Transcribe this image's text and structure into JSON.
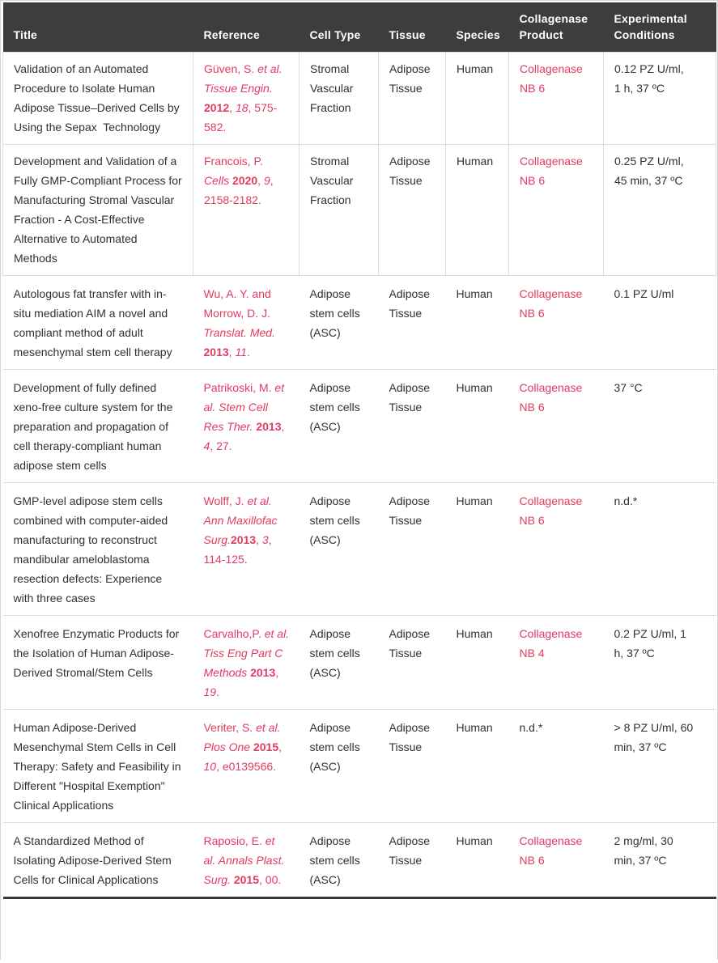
{
  "colors": {
    "accent": "#e23a61",
    "header_bg": "#3d3d3d",
    "header_text": "#ffffff",
    "body_text": "#303030",
    "border_light": "#dcdcdc",
    "border_dark": "#383838"
  },
  "table": {
    "columns": [
      {
        "key": "title",
        "label": "Title"
      },
      {
        "key": "reference",
        "label": "Reference"
      },
      {
        "key": "cell_type",
        "label": "Cell Type"
      },
      {
        "key": "tissue",
        "label": "Tissue"
      },
      {
        "key": "species",
        "label": "Species"
      },
      {
        "key": "product",
        "label": "Collagenase Product"
      },
      {
        "key": "conditions",
        "label": "Experimental Conditions"
      }
    ],
    "rows": [
      {
        "boxed": true,
        "title": "Validation of an Automated Procedure to Isolate Human Adipose Tissue–Derived Cells by Using the Sepax  Technology",
        "reference_parts": [
          {
            "text": "Güven, S. ",
            "style": "r"
          },
          {
            "text": "et al. Tissue Engin. ",
            "style": "i"
          },
          {
            "text": "2012",
            "style": "b"
          },
          {
            "text": ", ",
            "style": "r"
          },
          {
            "text": "18",
            "style": "i"
          },
          {
            "text": ", 575-582.",
            "style": "r"
          }
        ],
        "cell_type": "Stromal Vascular Fraction",
        "tissue": "Adipose Tissue",
        "species": "Human",
        "product": "Collagenase NB 6",
        "product_accent": true,
        "conditions": "0.12 PZ U/ml, 1 h, 37 ºC"
      },
      {
        "boxed": true,
        "title": "Development and Validation of a Fully GMP-Compliant Process for Manufacturing Stromal Vascular Fraction - A Cost-Effective Alternative to Automated Methods",
        "reference_parts": [
          {
            "text": "Francois, P. ",
            "style": "r"
          },
          {
            "text": "Cells ",
            "style": "i"
          },
          {
            "text": "2020",
            "style": "b"
          },
          {
            "text": ", ",
            "style": "r"
          },
          {
            "text": "9",
            "style": "i"
          },
          {
            "text": ", 2158-2182.",
            "style": "r"
          }
        ],
        "cell_type": "Stromal Vascular Fraction",
        "tissue": "Adipose Tissue",
        "species": "Human",
        "product": "Collagenase NB 6",
        "product_accent": true,
        "conditions": "0.25 PZ U/ml, 45 min, 37 ºC"
      },
      {
        "boxed": false,
        "title": "Autologous fat transfer with in-situ mediation AIM a novel and compliant method of adult mesenchymal stem cell therapy",
        "reference_parts": [
          {
            "text": "Wu, A. Y. and Morrow, D. J. ",
            "style": "r"
          },
          {
            "text": "Translat. Med. ",
            "style": "i"
          },
          {
            "text": "2013",
            "style": "b"
          },
          {
            "text": ", ",
            "style": "r"
          },
          {
            "text": "11",
            "style": "i"
          },
          {
            "text": ".",
            "style": "r"
          }
        ],
        "cell_type": "Adipose stem cells (ASC)",
        "tissue": "Adipose Tissue",
        "species": "Human",
        "product": "Collagenase NB 6",
        "product_accent": true,
        "conditions": "0.1 PZ U/ml"
      },
      {
        "boxed": false,
        "title": "Development of fully defined xeno-free culture system for the preparation and propagation of cell therapy-compliant human adipose stem cells",
        "reference_parts": [
          {
            "text": "Patrikoski, M. ",
            "style": "r"
          },
          {
            "text": "et al. Stem Cell Res Ther. ",
            "style": "i"
          },
          {
            "text": "2013",
            "style": "b"
          },
          {
            "text": ", ",
            "style": "r"
          },
          {
            "text": "4",
            "style": "i"
          },
          {
            "text": ", 27.",
            "style": "r"
          }
        ],
        "cell_type": "Adipose stem cells (ASC)",
        "tissue": "Adipose Tissue",
        "species": "Human",
        "product": "Collagenase NB 6",
        "product_accent": true,
        "conditions": "37 °C"
      },
      {
        "boxed": false,
        "title": "GMP-level adipose stem cells combined with computer-aided manufacturing to reconstruct mandibular ameloblastoma resection defects: Experience with three cases",
        "reference_parts": [
          {
            "text": "Wolff, J. ",
            "style": "r"
          },
          {
            "text": "et al. Ann Maxillofac Surg.",
            "style": "i"
          },
          {
            "text": "2013",
            "style": "b"
          },
          {
            "text": ", ",
            "style": "r"
          },
          {
            "text": "3",
            "style": "i"
          },
          {
            "text": ", 114-125.",
            "style": "r"
          }
        ],
        "cell_type": "Adipose stem cells (ASC)",
        "tissue": "Adipose Tissue",
        "species": "Human",
        "product": "Collagenase NB 6",
        "product_accent": true,
        "conditions": "n.d.*"
      },
      {
        "boxed": false,
        "title": "Xenofree Enzymatic Products for the Isolation of Human Adipose-Derived Stromal/Stem Cells",
        "reference_parts": [
          {
            "text": "Carvalho,P. ",
            "style": "r"
          },
          {
            "text": "et al. Tiss Eng Part C Methods ",
            "style": "i"
          },
          {
            "text": "2013",
            "style": "b"
          },
          {
            "text": ", ",
            "style": "r"
          },
          {
            "text": "19",
            "style": "i"
          },
          {
            "text": ".",
            "style": "r"
          }
        ],
        "cell_type": "Adipose stem cells (ASC)",
        "tissue": "Adipose Tissue",
        "species": "Human",
        "product": "Collagenase NB 4",
        "product_accent": true,
        "conditions": "0.2 PZ U/ml, 1 h, 37 ºC"
      },
      {
        "boxed": false,
        "title": "Human Adipose-Derived Mesenchymal Stem Cells in Cell Therapy: Safety and Feasibility in Different \"Hospital Exemption\" Clinical Applications",
        "reference_parts": [
          {
            "text": "Veriter, S. ",
            "style": "r"
          },
          {
            "text": "et al. Plos One ",
            "style": "i"
          },
          {
            "text": "2015",
            "style": "b"
          },
          {
            "text": ", ",
            "style": "r"
          },
          {
            "text": "10",
            "style": "i"
          },
          {
            "text": ", e0139566.",
            "style": "r"
          }
        ],
        "cell_type": "Adipose stem cells (ASC)",
        "tissue": "Adipose Tissue",
        "species": "Human",
        "product": "n.d.*",
        "product_accent": false,
        "conditions": "> 8 PZ U/ml, 60 min, 37 ºC"
      },
      {
        "boxed": false,
        "title": "A Standardized Method of Isolating Adipose-Derived Stem Cells for Clinical Applications",
        "reference_parts": [
          {
            "text": "Raposio, E. ",
            "style": "r"
          },
          {
            "text": "et al. Annals Plast. Surg. ",
            "style": "i"
          },
          {
            "text": "2015",
            "style": "b"
          },
          {
            "text": ", 00.",
            "style": "r"
          }
        ],
        "cell_type": "Adipose stem cells (ASC)",
        "tissue": "Adipose Tissue",
        "species": "Human",
        "product": "Collagenase NB 6",
        "product_accent": true,
        "conditions": "2 mg/ml, 30 min, 37 ºC"
      }
    ]
  }
}
